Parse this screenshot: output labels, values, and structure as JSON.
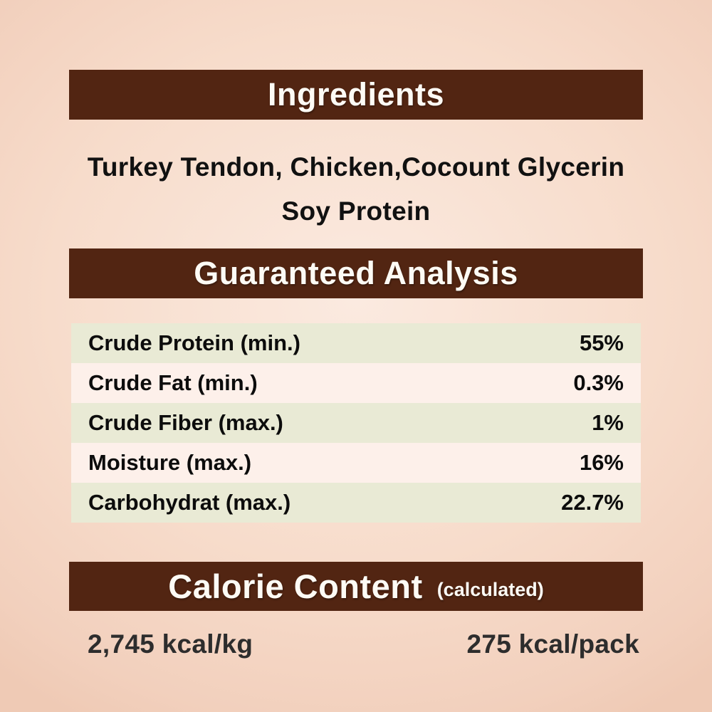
{
  "theme": {
    "bar_brown": "#522512",
    "bar_text": "#fdfbf5",
    "row_green": "#e9ead5",
    "row_pink": "#fdf0ea",
    "bg_center": "#fbeae0",
    "bg_edge": "#f2d0bd",
    "text_dark": "#111111",
    "kcal_text": "#2d2d2d"
  },
  "sections": {
    "ingredients": {
      "title": "Ingredients",
      "lines": {
        "0": "Turkey Tendon, Chicken,Cocount Glycerin",
        "1": "Soy Protein"
      }
    },
    "analysis": {
      "title": "Guaranteed Analysis",
      "rows": [
        {
          "label": "Crude Protein (min.)",
          "value": "55%"
        },
        {
          "label": "Crude Fat (min.)",
          "value": "0.3%"
        },
        {
          "label": "Crude Fiber (max.)",
          "value": "1%"
        },
        {
          "label": "Moisture (max.)",
          "value": "16%"
        },
        {
          "label": "Carbohydrat (max.)",
          "value": "22.7%"
        }
      ]
    },
    "calories": {
      "title": "Calorie Content",
      "subtitle": "(calculated)",
      "per_kg": "2,745 kcal/kg",
      "per_pack": "275 kcal/pack"
    }
  }
}
